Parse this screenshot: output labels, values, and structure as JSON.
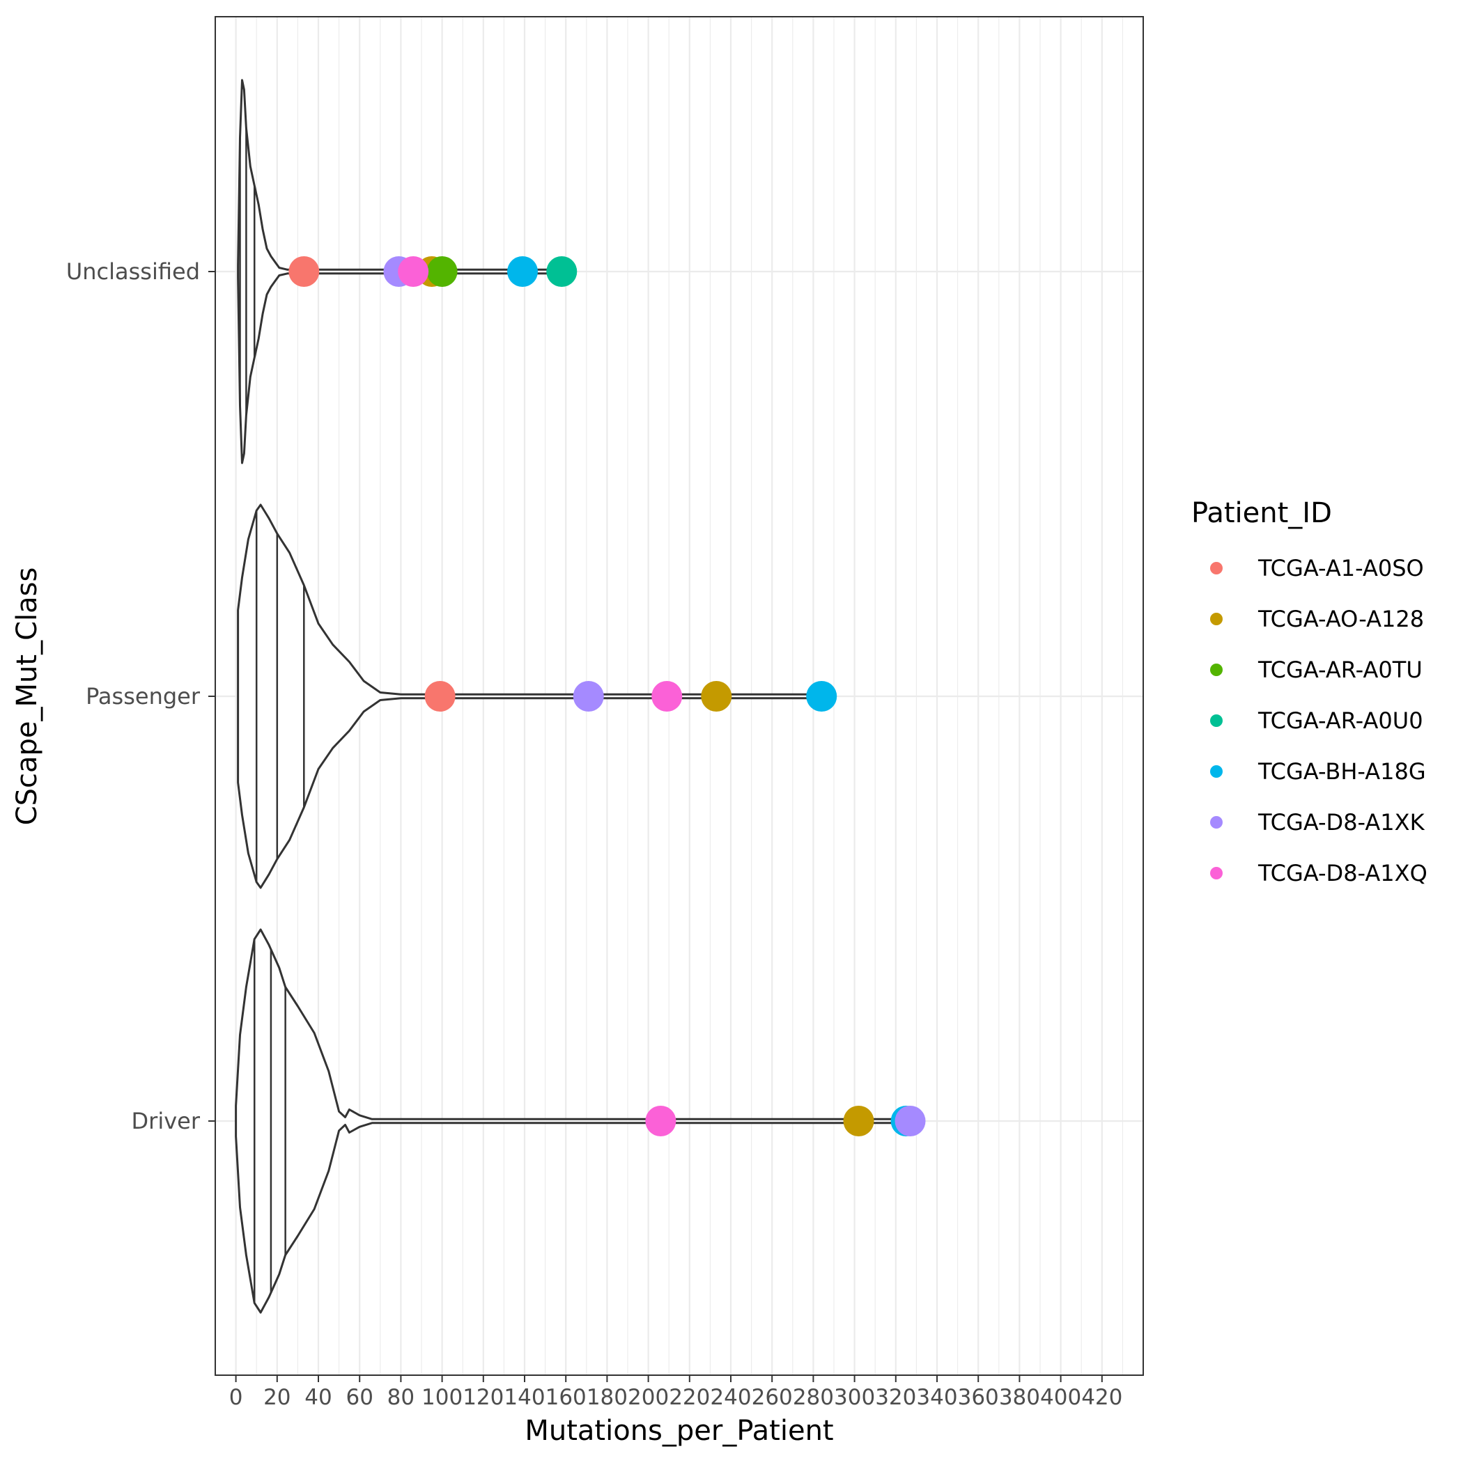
{
  "chart_data": {
    "type": "violin",
    "xlabel": "Mutations_per_Patient",
    "ylabel": "CScape_Mut_Class",
    "xlim": [
      -10,
      440
    ],
    "x_ticks": [
      0,
      20,
      40,
      60,
      80,
      100,
      120,
      140,
      160,
      180,
      200,
      220,
      240,
      260,
      280,
      300,
      320,
      340,
      360,
      380,
      400,
      420
    ],
    "x_tick_labels": [
      "0",
      "20",
      "40",
      "60",
      "80",
      "100",
      "120",
      "140",
      "160",
      "180",
      "200",
      "220",
      "240",
      "260",
      "280",
      "300",
      "320",
      "340",
      "360",
      "380",
      "400",
      "420"
    ],
    "categories": [
      "Unclassified",
      "Passenger",
      "Driver"
    ],
    "grid": true,
    "legend": {
      "title": "Patient_ID",
      "position": "right",
      "entries": [
        {
          "label": "TCGA-A1-A0SO",
          "color": "#F8766D"
        },
        {
          "label": "TCGA-AO-A128",
          "color": "#C49A00"
        },
        {
          "label": "TCGA-AR-A0TU",
          "color": "#53B400"
        },
        {
          "label": "TCGA-AR-A0U0",
          "color": "#00C094"
        },
        {
          "label": "TCGA-BH-A18G",
          "color": "#00B6EB"
        },
        {
          "label": "TCGA-D8-A1XK",
          "color": "#A58AFF"
        },
        {
          "label": "TCGA-D8-A1XQ",
          "color": "#FB61D7"
        }
      ]
    },
    "violins": [
      {
        "category": "Unclassified",
        "x_range": [
          1,
          158
        ],
        "quantiles": [
          2,
          5,
          9
        ],
        "profile": [
          [
            1,
            0.03
          ],
          [
            2,
            0.7
          ],
          [
            3,
            1.0
          ],
          [
            4,
            0.95
          ],
          [
            5,
            0.75
          ],
          [
            7,
            0.55
          ],
          [
            9,
            0.45
          ],
          [
            11,
            0.35
          ],
          [
            13,
            0.22
          ],
          [
            15,
            0.12
          ],
          [
            17,
            0.08
          ],
          [
            19,
            0.05
          ],
          [
            21,
            0.02
          ],
          [
            25,
            0.01
          ],
          [
            158,
            0.01
          ]
        ]
      },
      {
        "category": "Passenger",
        "x_range": [
          1,
          284
        ],
        "quantiles": [
          10,
          20,
          33
        ],
        "profile": [
          [
            1,
            0.45
          ],
          [
            3,
            0.62
          ],
          [
            6,
            0.82
          ],
          [
            10,
            0.97
          ],
          [
            12,
            1.0
          ],
          [
            16,
            0.93
          ],
          [
            20,
            0.85
          ],
          [
            26,
            0.75
          ],
          [
            33,
            0.58
          ],
          [
            40,
            0.38
          ],
          [
            47,
            0.27
          ],
          [
            55,
            0.18
          ],
          [
            62,
            0.08
          ],
          [
            70,
            0.02
          ],
          [
            80,
            0.01
          ],
          [
            284,
            0.01
          ]
        ]
      },
      {
        "category": "Driver",
        "x_range": [
          0,
          327
        ],
        "quantiles": [
          9,
          17,
          24
        ],
        "profile": [
          [
            0,
            0.08
          ],
          [
            2,
            0.45
          ],
          [
            5,
            0.7
          ],
          [
            9,
            0.95
          ],
          [
            12,
            1.0
          ],
          [
            16,
            0.92
          ],
          [
            21,
            0.8
          ],
          [
            24,
            0.7
          ],
          [
            30,
            0.6
          ],
          [
            38,
            0.46
          ],
          [
            45,
            0.26
          ],
          [
            50,
            0.05
          ],
          [
            53,
            0.02
          ],
          [
            55,
            0.06
          ],
          [
            60,
            0.03
          ],
          [
            66,
            0.01
          ],
          [
            327,
            0.01
          ]
        ]
      }
    ],
    "points": [
      {
        "category": "Unclassified",
        "patient": "TCGA-A1-A0SO",
        "x": 33,
        "color": "#F8766D"
      },
      {
        "category": "Unclassified",
        "patient": "TCGA-D8-A1XK",
        "x": 79,
        "color": "#A58AFF"
      },
      {
        "category": "Unclassified",
        "patient": "TCGA-AO-A128",
        "x": 95,
        "color": "#C49A00"
      },
      {
        "category": "Unclassified",
        "patient": "TCGA-AR-A0TU",
        "x": 100,
        "color": "#53B400"
      },
      {
        "category": "Unclassified",
        "patient": "TCGA-D8-A1XQ",
        "x": 86,
        "color": "#FB61D7"
      },
      {
        "category": "Unclassified",
        "patient": "TCGA-BH-A18G",
        "x": 139,
        "color": "#00B6EB"
      },
      {
        "category": "Unclassified",
        "patient": "TCGA-AR-A0U0",
        "x": 158,
        "color": "#00C094"
      },
      {
        "category": "Passenger",
        "patient": "TCGA-A1-A0SO",
        "x": 99,
        "color": "#F8766D"
      },
      {
        "category": "Passenger",
        "patient": "TCGA-D8-A1XK",
        "x": 171,
        "color": "#A58AFF"
      },
      {
        "category": "Passenger",
        "patient": "TCGA-D8-A1XQ",
        "x": 209,
        "color": "#FB61D7"
      },
      {
        "category": "Passenger",
        "patient": "TCGA-AO-A128",
        "x": 233,
        "color": "#C49A00"
      },
      {
        "category": "Passenger",
        "patient": "TCGA-BH-A18G",
        "x": 284,
        "color": "#00B6EB"
      },
      {
        "category": "Driver",
        "patient": "TCGA-D8-A1XQ",
        "x": 206,
        "color": "#FB61D7"
      },
      {
        "category": "Driver",
        "patient": "TCGA-AO-A128",
        "x": 302,
        "color": "#C49A00"
      },
      {
        "category": "Driver",
        "patient": "TCGA-BH-A18G",
        "x": 325,
        "color": "#00B6EB"
      },
      {
        "category": "Driver",
        "patient": "TCGA-D8-A1XK",
        "x": 327,
        "color": "#A58AFF"
      }
    ]
  }
}
